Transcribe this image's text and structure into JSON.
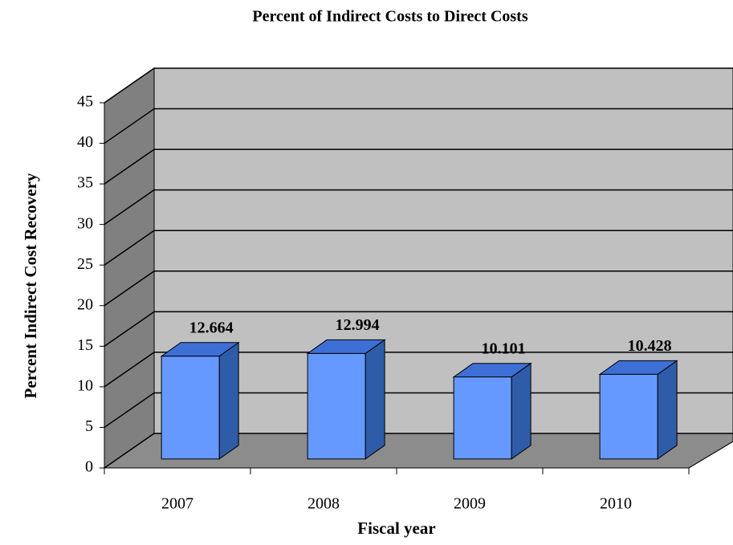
{
  "chart_data": {
    "type": "bar",
    "title": "Percent of Indirect Costs to Direct Costs",
    "x_label": "Fiscal year",
    "y_label": "Percent Indirect Cost Recovery",
    "categories": [
      "2007",
      "2008",
      "2009",
      "2010"
    ],
    "values": [
      12.664,
      12.994,
      10.101,
      10.428
    ],
    "color": "#6699ff",
    "ylim": [
      0,
      45
    ],
    "yticks": [
      0,
      5,
      10,
      15,
      20,
      25,
      30,
      35,
      40,
      45
    ],
    "grid": true
  }
}
